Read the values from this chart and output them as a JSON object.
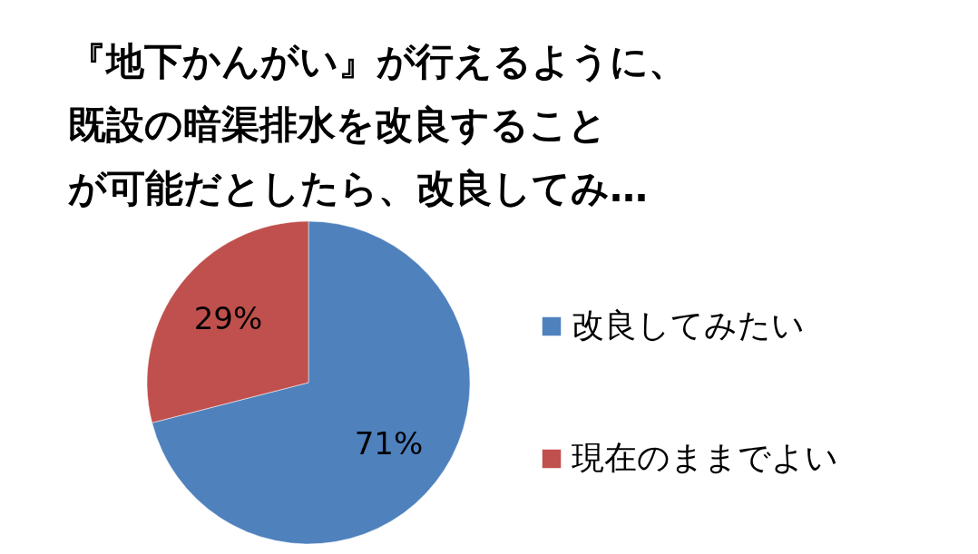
{
  "chart_data": {
    "type": "pie",
    "title": "『地下かんがい』が行えるように、既設の暗渠排水を改良することが可能だとしたら、改良してみ…",
    "categories": [
      "改良してみたい",
      "現在のままでよい"
    ],
    "values": [
      71,
      29
    ],
    "colors": [
      "#4f81bd",
      "#c0504d"
    ],
    "value_labels": [
      "71%",
      "29%"
    ],
    "legend": "right"
  }
}
